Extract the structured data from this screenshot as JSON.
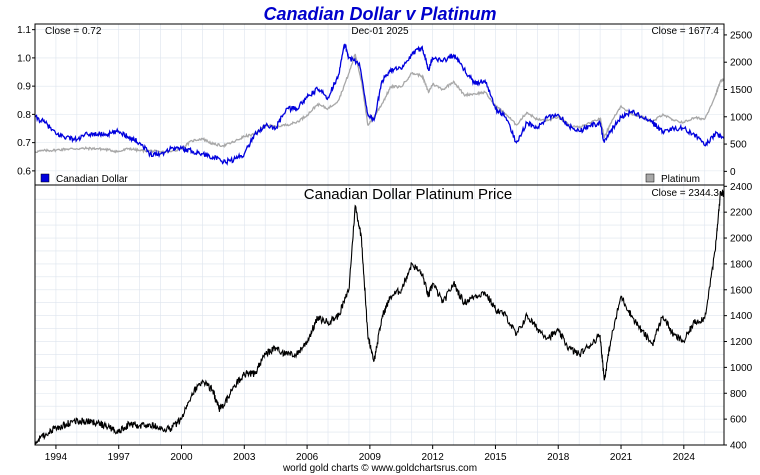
{
  "page_title": "Canadian Dollar v Platinum",
  "footer": "world gold charts © www.goldchartsrus.com",
  "chart_data": [
    {
      "type": "line",
      "id": "top",
      "title": "Canadian Dollar v Platinum",
      "date_label": "Dec-01  2025",
      "left_readout": "Close = 0.72",
      "right_readout": "Close = 1677.4",
      "left_axis": {
        "min": 0.55,
        "max": 1.12,
        "ticks": [
          0.6,
          0.7,
          0.8,
          0.9,
          1.0,
          1.1
        ],
        "tick_labels": [
          "0.6",
          "0.7",
          "0.8",
          "0.9",
          "1.0",
          "1.1"
        ]
      },
      "right_axis": {
        "min": -250,
        "max": 2700,
        "ticks": [
          0,
          500,
          1000,
          1500,
          2000,
          2500
        ],
        "tick_labels": [
          "0",
          "500",
          "1000",
          "1500",
          "2000",
          "2500"
        ]
      },
      "x_range": [
        1993.0,
        2025.92
      ],
      "series": [
        {
          "name": "Canadian Dollar",
          "axis": "left",
          "color": "#0000dd",
          "points": [
            [
              1993.0,
              0.79
            ],
            [
              1993.5,
              0.77
            ],
            [
              1994.0,
              0.73
            ],
            [
              1994.5,
              0.72
            ],
            [
              1995.0,
              0.71
            ],
            [
              1995.5,
              0.73
            ],
            [
              1996.0,
              0.73
            ],
            [
              1996.5,
              0.73
            ],
            [
              1997.0,
              0.74
            ],
            [
              1997.5,
              0.72
            ],
            [
              1998.0,
              0.7
            ],
            [
              1998.5,
              0.66
            ],
            [
              1999.0,
              0.66
            ],
            [
              1999.5,
              0.68
            ],
            [
              2000.0,
              0.68
            ],
            [
              2000.5,
              0.67
            ],
            [
              2001.0,
              0.66
            ],
            [
              2001.5,
              0.65
            ],
            [
              2002.0,
              0.63
            ],
            [
              2002.5,
              0.64
            ],
            [
              2003.0,
              0.66
            ],
            [
              2003.5,
              0.73
            ],
            [
              2004.0,
              0.76
            ],
            [
              2004.5,
              0.75
            ],
            [
              2005.0,
              0.82
            ],
            [
              2005.5,
              0.82
            ],
            [
              2006.0,
              0.86
            ],
            [
              2006.5,
              0.89
            ],
            [
              2007.0,
              0.86
            ],
            [
              2007.5,
              0.94
            ],
            [
              2007.8,
              1.05
            ],
            [
              2008.0,
              1.0
            ],
            [
              2008.5,
              0.98
            ],
            [
              2008.9,
              0.8
            ],
            [
              2009.2,
              0.78
            ],
            [
              2009.6,
              0.92
            ],
            [
              2010.0,
              0.96
            ],
            [
              2010.5,
              0.96
            ],
            [
              2011.0,
              1.01
            ],
            [
              2011.5,
              1.04
            ],
            [
              2011.8,
              0.96
            ],
            [
              2012.0,
              1.0
            ],
            [
              2012.5,
              0.99
            ],
            [
              2013.0,
              1.01
            ],
            [
              2013.5,
              0.96
            ],
            [
              2014.0,
              0.91
            ],
            [
              2014.5,
              0.92
            ],
            [
              2015.0,
              0.82
            ],
            [
              2015.5,
              0.79
            ],
            [
              2016.0,
              0.7
            ],
            [
              2016.5,
              0.77
            ],
            [
              2017.0,
              0.75
            ],
            [
              2017.5,
              0.79
            ],
            [
              2018.0,
              0.8
            ],
            [
              2018.5,
              0.76
            ],
            [
              2019.0,
              0.74
            ],
            [
              2019.5,
              0.76
            ],
            [
              2020.0,
              0.77
            ],
            [
              2020.2,
              0.7
            ],
            [
              2020.5,
              0.74
            ],
            [
              2021.0,
              0.79
            ],
            [
              2021.5,
              0.81
            ],
            [
              2022.0,
              0.79
            ],
            [
              2022.5,
              0.77
            ],
            [
              2023.0,
              0.74
            ],
            [
              2023.5,
              0.75
            ],
            [
              2024.0,
              0.75
            ],
            [
              2024.5,
              0.73
            ],
            [
              2025.0,
              0.69
            ],
            [
              2025.5,
              0.73
            ],
            [
              2025.92,
              0.72
            ]
          ]
        },
        {
          "name": "Platinum",
          "axis": "right",
          "color": "#a8a8a8",
          "points": [
            [
              1993.0,
              360
            ],
            [
              1993.5,
              380
            ],
            [
              1994.0,
              390
            ],
            [
              1994.5,
              410
            ],
            [
              1995.0,
              415
            ],
            [
              1995.5,
              420
            ],
            [
              1996.0,
              415
            ],
            [
              1996.5,
              395
            ],
            [
              1997.0,
              360
            ],
            [
              1997.5,
              420
            ],
            [
              1998.0,
              380
            ],
            [
              1998.5,
              380
            ],
            [
              1999.0,
              350
            ],
            [
              1999.5,
              360
            ],
            [
              2000.0,
              420
            ],
            [
              2000.5,
              560
            ],
            [
              2001.0,
              600
            ],
            [
              2001.5,
              500
            ],
            [
              2002.0,
              470
            ],
            [
              2002.5,
              540
            ],
            [
              2003.0,
              640
            ],
            [
              2003.5,
              680
            ],
            [
              2004.0,
              850
            ],
            [
              2004.5,
              820
            ],
            [
              2005.0,
              850
            ],
            [
              2005.5,
              900
            ],
            [
              2006.0,
              1030
            ],
            [
              2006.5,
              1230
            ],
            [
              2007.0,
              1150
            ],
            [
              2007.5,
              1300
            ],
            [
              2008.0,
              1800
            ],
            [
              2008.3,
              2150
            ],
            [
              2008.6,
              1650
            ],
            [
              2008.9,
              850
            ],
            [
              2009.2,
              1000
            ],
            [
              2009.6,
              1250
            ],
            [
              2010.0,
              1550
            ],
            [
              2010.5,
              1550
            ],
            [
              2011.0,
              1800
            ],
            [
              2011.5,
              1750
            ],
            [
              2011.8,
              1450
            ],
            [
              2012.0,
              1600
            ],
            [
              2012.5,
              1500
            ],
            [
              2013.0,
              1650
            ],
            [
              2013.5,
              1400
            ],
            [
              2014.0,
              1420
            ],
            [
              2014.5,
              1450
            ],
            [
              2015.0,
              1200
            ],
            [
              2015.5,
              1050
            ],
            [
              2016.0,
              850
            ],
            [
              2016.5,
              1080
            ],
            [
              2017.0,
              950
            ],
            [
              2017.5,
              930
            ],
            [
              2018.0,
              1000
            ],
            [
              2018.5,
              850
            ],
            [
              2019.0,
              800
            ],
            [
              2019.5,
              880
            ],
            [
              2020.0,
              970
            ],
            [
              2020.2,
              620
            ],
            [
              2020.5,
              880
            ],
            [
              2021.0,
              1200
            ],
            [
              2021.5,
              1050
            ],
            [
              2022.0,
              1000
            ],
            [
              2022.5,
              900
            ],
            [
              2023.0,
              1050
            ],
            [
              2023.5,
              930
            ],
            [
              2024.0,
              900
            ],
            [
              2024.5,
              980
            ],
            [
              2025.0,
              960
            ],
            [
              2025.5,
              1380
            ],
            [
              2025.75,
              1650
            ],
            [
              2025.92,
              1677.4
            ]
          ]
        }
      ],
      "legend": [
        {
          "label": "Canadian Dollar",
          "color": "#0000dd",
          "position": "bottom-left"
        },
        {
          "label": "Platinum",
          "color": "#a8a8a8",
          "position": "bottom-right"
        }
      ],
      "grid": true
    },
    {
      "type": "line",
      "id": "bottom",
      "title": "Canadian Dollar Platinum Price",
      "right_readout": "Close = 2344.3",
      "y_axis": {
        "min": 400,
        "max": 2410,
        "ticks": [
          400,
          600,
          800,
          1000,
          1200,
          1400,
          1600,
          1800,
          2000,
          2200,
          2400
        ],
        "tick_labels": [
          "400",
          "600",
          "800",
          "1000",
          "1200",
          "1400",
          "1600",
          "1800",
          "2000",
          "2200",
          "2400"
        ]
      },
      "x_axis": {
        "ticks": [
          1994,
          1997,
          2000,
          2003,
          2006,
          2009,
          2012,
          2015,
          2018,
          2021,
          2024
        ],
        "tick_labels": [
          "1994",
          "1997",
          "2000",
          "2003",
          "2006",
          "2009",
          "2012",
          "2015",
          "2018",
          "2021",
          "2024"
        ]
      },
      "x_range": [
        1993.0,
        2025.92
      ],
      "series": [
        {
          "name": "Canadian Dollar Platinum Price",
          "color": "#000000",
          "points": [
            [
              1993.0,
              420
            ],
            [
              1993.5,
              480
            ],
            [
              1994.0,
              530
            ],
            [
              1994.5,
              560
            ],
            [
              1995.0,
              590
            ],
            [
              1995.5,
              580
            ],
            [
              1996.0,
              570
            ],
            [
              1996.5,
              540
            ],
            [
              1997.0,
              500
            ],
            [
              1997.5,
              560
            ],
            [
              1998.0,
              550
            ],
            [
              1998.5,
              560
            ],
            [
              1999.0,
              520
            ],
            [
              1999.5,
              530
            ],
            [
              2000.0,
              600
            ],
            [
              2000.5,
              800
            ],
            [
              2001.0,
              900
            ],
            [
              2001.5,
              820
            ],
            [
              2001.8,
              680
            ],
            [
              2002.0,
              700
            ],
            [
              2002.5,
              850
            ],
            [
              2003.0,
              950
            ],
            [
              2003.5,
              950
            ],
            [
              2004.0,
              1100
            ],
            [
              2004.5,
              1150
            ],
            [
              2005.0,
              1100
            ],
            [
              2005.5,
              1100
            ],
            [
              2006.0,
              1200
            ],
            [
              2006.5,
              1380
            ],
            [
              2007.0,
              1350
            ],
            [
              2007.5,
              1400
            ],
            [
              2008.0,
              1600
            ],
            [
              2008.3,
              2250
            ],
            [
              2008.6,
              2000
            ],
            [
              2008.9,
              1250
            ],
            [
              2009.2,
              1050
            ],
            [
              2009.6,
              1400
            ],
            [
              2010.0,
              1550
            ],
            [
              2010.5,
              1600
            ],
            [
              2011.0,
              1800
            ],
            [
              2011.5,
              1720
            ],
            [
              2011.8,
              1550
            ],
            [
              2012.0,
              1650
            ],
            [
              2012.5,
              1500
            ],
            [
              2013.0,
              1650
            ],
            [
              2013.5,
              1500
            ],
            [
              2014.0,
              1550
            ],
            [
              2014.5,
              1580
            ],
            [
              2015.0,
              1450
            ],
            [
              2015.5,
              1400
            ],
            [
              2016.0,
              1250
            ],
            [
              2016.5,
              1400
            ],
            [
              2017.0,
              1300
            ],
            [
              2017.5,
              1230
            ],
            [
              2018.0,
              1280
            ],
            [
              2018.5,
              1150
            ],
            [
              2019.0,
              1100
            ],
            [
              2019.5,
              1170
            ],
            [
              2020.0,
              1250
            ],
            [
              2020.2,
              900
            ],
            [
              2020.5,
              1200
            ],
            [
              2021.0,
              1550
            ],
            [
              2021.5,
              1400
            ],
            [
              2022.0,
              1280
            ],
            [
              2022.5,
              1180
            ],
            [
              2023.0,
              1400
            ],
            [
              2023.5,
              1250
            ],
            [
              2024.0,
              1200
            ],
            [
              2024.5,
              1350
            ],
            [
              2025.0,
              1380
            ],
            [
              2025.5,
              1900
            ],
            [
              2025.75,
              2350
            ],
            [
              2025.92,
              2344.3
            ]
          ]
        }
      ],
      "grid": true
    }
  ]
}
